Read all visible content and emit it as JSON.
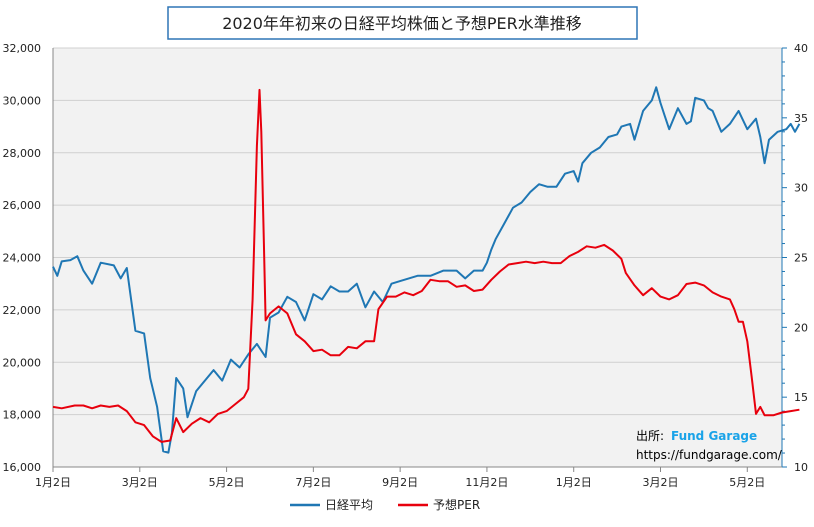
{
  "chart_data": {
    "type": "line",
    "title": "2020年年初来の日経平均株価と予想PER水準推移",
    "categories": [
      "1月2日",
      "3月2日",
      "5月2日",
      "7月2日",
      "9月2日",
      "11月2日",
      "1月2日",
      "3月2日",
      "5月2日"
    ],
    "y_left": {
      "ticks": [
        "16,000",
        "18,000",
        "20,000",
        "22,000",
        "24,000",
        "26,000",
        "28,000",
        "30,000",
        "32,000"
      ],
      "range": [
        16000,
        32000
      ]
    },
    "y_right": {
      "ticks": [
        "10",
        "15",
        "20",
        "25",
        "30",
        "35",
        "40"
      ],
      "range": [
        10,
        40
      ]
    },
    "grid": "horizontal",
    "legend_position": "bottom",
    "series": [
      {
        "name": "日経平均",
        "color": "#1f77b4",
        "axis": "left",
        "points": [
          [
            0,
            23650
          ],
          [
            0.05,
            23300
          ],
          [
            0.1,
            23850
          ],
          [
            0.2,
            23900
          ],
          [
            0.28,
            24050
          ],
          [
            0.35,
            23500
          ],
          [
            0.45,
            23000
          ],
          [
            0.55,
            23800
          ],
          [
            0.7,
            23700
          ],
          [
            0.78,
            23200
          ],
          [
            0.85,
            23600
          ],
          [
            0.95,
            21200
          ],
          [
            1.05,
            21100
          ],
          [
            1.12,
            19400
          ],
          [
            1.2,
            18300
          ],
          [
            1.27,
            16600
          ],
          [
            1.33,
            16550
          ],
          [
            1.37,
            17300
          ],
          [
            1.42,
            19400
          ],
          [
            1.5,
            19000
          ],
          [
            1.55,
            17900
          ],
          [
            1.65,
            18900
          ],
          [
            1.75,
            19300
          ],
          [
            1.85,
            19700
          ],
          [
            1.95,
            19300
          ],
          [
            2.05,
            20100
          ],
          [
            2.15,
            19800
          ],
          [
            2.25,
            20300
          ],
          [
            2.35,
            20700
          ],
          [
            2.45,
            20200
          ],
          [
            2.5,
            21700
          ],
          [
            2.6,
            21900
          ],
          [
            2.7,
            22500
          ],
          [
            2.8,
            22300
          ],
          [
            2.9,
            21600
          ],
          [
            3.0,
            22600
          ],
          [
            3.1,
            22400
          ],
          [
            3.2,
            22900
          ],
          [
            3.3,
            22700
          ],
          [
            3.4,
            22700
          ],
          [
            3.5,
            23000
          ],
          [
            3.6,
            22100
          ],
          [
            3.7,
            22700
          ],
          [
            3.8,
            22300
          ],
          [
            3.9,
            23000
          ],
          [
            4.0,
            23100
          ],
          [
            4.1,
            23200
          ],
          [
            4.2,
            23300
          ],
          [
            4.35,
            23300
          ],
          [
            4.5,
            23500
          ],
          [
            4.65,
            23500
          ],
          [
            4.75,
            23200
          ],
          [
            4.85,
            23500
          ],
          [
            4.95,
            23500
          ],
          [
            5.0,
            23800
          ],
          [
            5.05,
            24300
          ],
          [
            5.1,
            24700
          ],
          [
            5.2,
            25300
          ],
          [
            5.3,
            25900
          ],
          [
            5.4,
            26100
          ],
          [
            5.5,
            26500
          ],
          [
            5.6,
            26800
          ],
          [
            5.7,
            26700
          ],
          [
            5.8,
            26700
          ],
          [
            5.9,
            27200
          ],
          [
            6.0,
            27300
          ],
          [
            6.05,
            26900
          ],
          [
            6.1,
            27600
          ],
          [
            6.2,
            28000
          ],
          [
            6.3,
            28200
          ],
          [
            6.4,
            28600
          ],
          [
            6.5,
            28700
          ],
          [
            6.55,
            29000
          ],
          [
            6.65,
            29100
          ],
          [
            6.7,
            28500
          ],
          [
            6.8,
            29600
          ],
          [
            6.9,
            30000
          ],
          [
            6.95,
            30500
          ],
          [
            7.0,
            29900
          ],
          [
            7.05,
            29400
          ],
          [
            7.1,
            28900
          ],
          [
            7.2,
            29700
          ],
          [
            7.3,
            29100
          ],
          [
            7.35,
            29200
          ],
          [
            7.4,
            30100
          ],
          [
            7.5,
            30000
          ],
          [
            7.55,
            29700
          ],
          [
            7.6,
            29600
          ],
          [
            7.7,
            28800
          ],
          [
            7.8,
            29100
          ],
          [
            7.9,
            29600
          ],
          [
            8.0,
            28900
          ],
          [
            8.1,
            29300
          ],
          [
            8.15,
            28600
          ],
          [
            8.2,
            27600
          ],
          [
            8.25,
            28500
          ],
          [
            8.35,
            28800
          ],
          [
            8.45,
            28900
          ],
          [
            8.5,
            29100
          ],
          [
            8.55,
            28800
          ],
          [
            8.6,
            29100
          ]
        ]
      },
      {
        "name": "予想PER",
        "color": "#e8000d",
        "axis": "right",
        "points": [
          [
            0,
            14.3
          ],
          [
            0.1,
            14.2
          ],
          [
            0.25,
            14.4
          ],
          [
            0.35,
            14.4
          ],
          [
            0.45,
            14.2
          ],
          [
            0.55,
            14.4
          ],
          [
            0.65,
            14.3
          ],
          [
            0.75,
            14.4
          ],
          [
            0.85,
            14.0
          ],
          [
            0.95,
            13.2
          ],
          [
            1.05,
            13.0
          ],
          [
            1.15,
            12.2
          ],
          [
            1.25,
            11.8
          ],
          [
            1.35,
            11.9
          ],
          [
            1.42,
            13.5
          ],
          [
            1.5,
            12.5
          ],
          [
            1.6,
            13.1
          ],
          [
            1.7,
            13.5
          ],
          [
            1.8,
            13.2
          ],
          [
            1.9,
            13.8
          ],
          [
            2.0,
            14.0
          ],
          [
            2.1,
            14.5
          ],
          [
            2.2,
            15.0
          ],
          [
            2.25,
            15.6
          ],
          [
            2.3,
            22.0
          ],
          [
            2.35,
            33.0
          ],
          [
            2.38,
            37.0
          ],
          [
            2.4,
            34.0
          ],
          [
            2.43,
            26.0
          ],
          [
            2.45,
            20.5
          ],
          [
            2.5,
            21.0
          ],
          [
            2.6,
            21.5
          ],
          [
            2.7,
            21.0
          ],
          [
            2.8,
            19.5
          ],
          [
            2.9,
            19.0
          ],
          [
            3.0,
            18.3
          ],
          [
            3.1,
            18.4
          ],
          [
            3.2,
            18.0
          ],
          [
            3.3,
            18.0
          ],
          [
            3.4,
            18.6
          ],
          [
            3.5,
            18.5
          ],
          [
            3.6,
            19.0
          ],
          [
            3.7,
            19.0
          ],
          [
            3.75,
            21.3
          ],
          [
            3.85,
            22.2
          ],
          [
            3.95,
            22.2
          ],
          [
            4.05,
            22.5
          ],
          [
            4.15,
            22.3
          ],
          [
            4.25,
            22.6
          ],
          [
            4.35,
            23.4
          ],
          [
            4.45,
            23.3
          ],
          [
            4.55,
            23.3
          ],
          [
            4.65,
            22.9
          ],
          [
            4.75,
            23.0
          ],
          [
            4.85,
            22.6
          ],
          [
            4.95,
            22.7
          ],
          [
            5.05,
            23.4
          ],
          [
            5.15,
            24.0
          ],
          [
            5.25,
            24.5
          ],
          [
            5.35,
            24.6
          ],
          [
            5.45,
            24.7
          ],
          [
            5.55,
            24.6
          ],
          [
            5.65,
            24.7
          ],
          [
            5.75,
            24.6
          ],
          [
            5.85,
            24.6
          ],
          [
            5.95,
            25.1
          ],
          [
            6.05,
            25.4
          ],
          [
            6.15,
            25.8
          ],
          [
            6.25,
            25.7
          ],
          [
            6.35,
            25.9
          ],
          [
            6.45,
            25.5
          ],
          [
            6.55,
            24.9
          ],
          [
            6.6,
            23.9
          ],
          [
            6.7,
            23.0
          ],
          [
            6.8,
            22.3
          ],
          [
            6.9,
            22.8
          ],
          [
            7.0,
            22.2
          ],
          [
            7.1,
            22.0
          ],
          [
            7.2,
            22.3
          ],
          [
            7.3,
            23.1
          ],
          [
            7.4,
            23.2
          ],
          [
            7.5,
            23.0
          ],
          [
            7.6,
            22.5
          ],
          [
            7.7,
            22.2
          ],
          [
            7.8,
            22.0
          ],
          [
            7.85,
            21.3
          ],
          [
            7.9,
            20.4
          ],
          [
            7.95,
            20.4
          ],
          [
            8.0,
            19.0
          ],
          [
            8.05,
            16.5
          ],
          [
            8.1,
            13.8
          ],
          [
            8.15,
            14.3
          ],
          [
            8.2,
            13.7
          ],
          [
            8.3,
            13.7
          ],
          [
            8.4,
            13.9
          ],
          [
            8.5,
            14.0
          ],
          [
            8.6,
            14.1
          ]
        ]
      }
    ]
  },
  "source": {
    "label": "出所:",
    "brand": "Fund Garage",
    "url": "https://fundgarage.com/"
  }
}
